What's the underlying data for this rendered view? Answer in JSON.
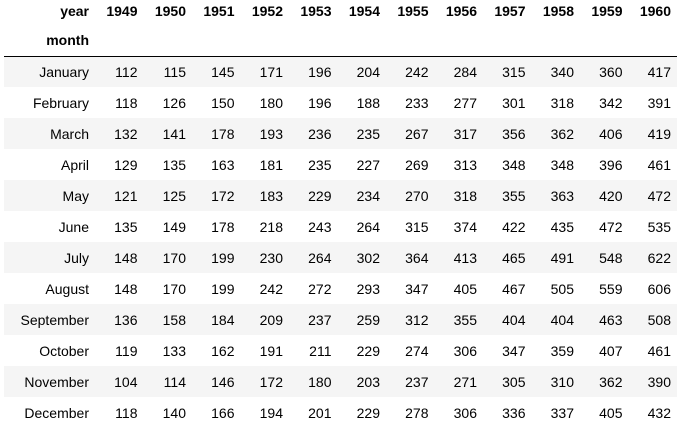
{
  "table": {
    "columns_header_label": "year",
    "index_header_label": "month",
    "columns": [
      "1949",
      "1950",
      "1951",
      "1952",
      "1953",
      "1954",
      "1955",
      "1956",
      "1957",
      "1958",
      "1959",
      "1960"
    ],
    "rows": [
      {
        "month": "January",
        "values": [
          "112",
          "115",
          "145",
          "171",
          "196",
          "204",
          "242",
          "284",
          "315",
          "340",
          "360",
          "417"
        ]
      },
      {
        "month": "February",
        "values": [
          "118",
          "126",
          "150",
          "180",
          "196",
          "188",
          "233",
          "277",
          "301",
          "318",
          "342",
          "391"
        ]
      },
      {
        "month": "March",
        "values": [
          "132",
          "141",
          "178",
          "193",
          "236",
          "235",
          "267",
          "317",
          "356",
          "362",
          "406",
          "419"
        ]
      },
      {
        "month": "April",
        "values": [
          "129",
          "135",
          "163",
          "181",
          "235",
          "227",
          "269",
          "313",
          "348",
          "348",
          "396",
          "461"
        ]
      },
      {
        "month": "May",
        "values": [
          "121",
          "125",
          "172",
          "183",
          "229",
          "234",
          "270",
          "318",
          "355",
          "363",
          "420",
          "472"
        ]
      },
      {
        "month": "June",
        "values": [
          "135",
          "149",
          "178",
          "218",
          "243",
          "264",
          "315",
          "374",
          "422",
          "435",
          "472",
          "535"
        ]
      },
      {
        "month": "July",
        "values": [
          "148",
          "170",
          "199",
          "230",
          "264",
          "302",
          "364",
          "413",
          "465",
          "491",
          "548",
          "622"
        ]
      },
      {
        "month": "August",
        "values": [
          "148",
          "170",
          "199",
          "242",
          "272",
          "293",
          "347",
          "405",
          "467",
          "505",
          "559",
          "606"
        ]
      },
      {
        "month": "September",
        "values": [
          "136",
          "158",
          "184",
          "209",
          "237",
          "259",
          "312",
          "355",
          "404",
          "404",
          "463",
          "508"
        ]
      },
      {
        "month": "October",
        "values": [
          "119",
          "133",
          "162",
          "191",
          "211",
          "229",
          "274",
          "306",
          "347",
          "359",
          "407",
          "461"
        ]
      },
      {
        "month": "November",
        "values": [
          "104",
          "114",
          "146",
          "172",
          "180",
          "203",
          "237",
          "271",
          "305",
          "310",
          "362",
          "390"
        ]
      },
      {
        "month": "December",
        "values": [
          "118",
          "140",
          "166",
          "194",
          "201",
          "229",
          "278",
          "306",
          "336",
          "337",
          "405",
          "432"
        ]
      }
    ]
  }
}
